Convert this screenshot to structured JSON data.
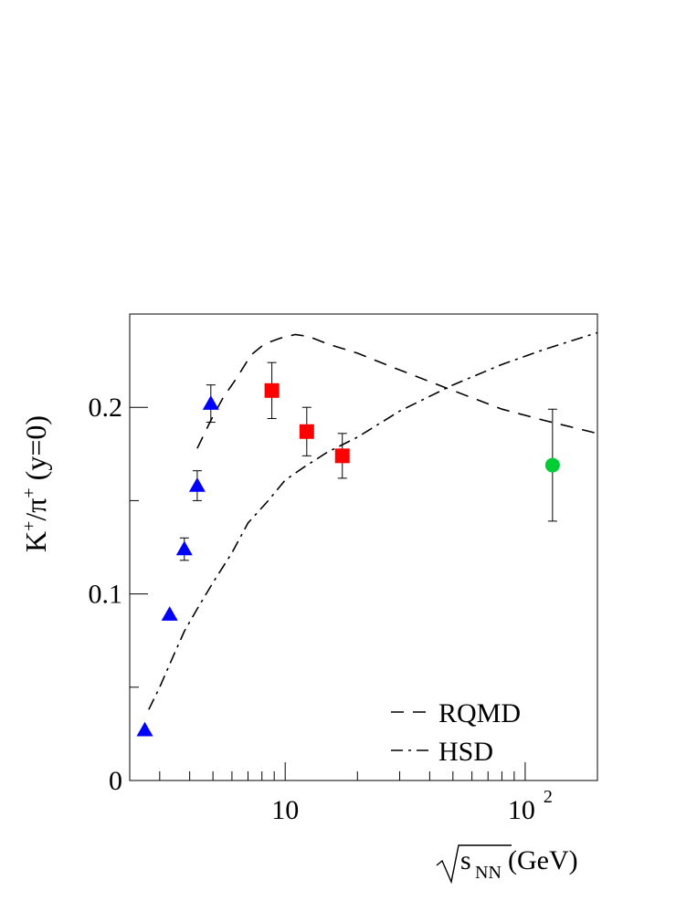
{
  "chart_data": {
    "type": "scatter",
    "xscale": "log",
    "xlim": [
      2.25,
      200
    ],
    "ylim": [
      0,
      0.25
    ],
    "grid": false,
    "legend_position": "bottom-right",
    "xlabel": "s_NN (GeV)",
    "xlabel_parts": {
      "base": "s",
      "subscript": "NN",
      "unit": " (GeV)"
    },
    "ylabel": "K+/π+ (y=0)",
    "ylabel_parts": {
      "k": "K",
      "plus1": "+",
      "slash_pi": "/π",
      "plus2": "+",
      "rest": " (y=0)"
    },
    "y_ticks": [
      {
        "value": 0,
        "label": "0"
      },
      {
        "value": 0.1,
        "label": "0.1"
      },
      {
        "value": 0.2,
        "label": "0.2"
      }
    ],
    "x_ticks": [
      {
        "value": 10,
        "label": "10"
      },
      {
        "value": 100,
        "label": "10",
        "exponent": "2"
      }
    ],
    "markers": [
      {
        "shape": "triangle",
        "color": "#0000ff",
        "points": [
          {
            "x": 2.6,
            "y": 0.027
          },
          {
            "x": 3.3,
            "y": 0.089
          },
          {
            "x": 3.8,
            "y": 0.124,
            "err": 0.006
          },
          {
            "x": 4.3,
            "y": 0.158,
            "err": 0.008
          },
          {
            "x": 4.9,
            "y": 0.202,
            "err": 0.01
          }
        ]
      },
      {
        "shape": "square",
        "color": "#ff0000",
        "points": [
          {
            "x": 8.8,
            "y": 0.209,
            "err": 0.015
          },
          {
            "x": 12.3,
            "y": 0.187,
            "err": 0.013
          },
          {
            "x": 17.3,
            "y": 0.174,
            "err": 0.012
          }
        ]
      },
      {
        "shape": "circle",
        "color": "#00cc33",
        "points": [
          {
            "x": 130,
            "y": 0.169,
            "err": 0.03
          }
        ]
      }
    ],
    "series": [
      {
        "name": "RQMD",
        "style": "dashed",
        "x": [
          4.3,
          4.9,
          5.5,
          6.3,
          7.2,
          8.2,
          9.5,
          11,
          12.5,
          15,
          20,
          30,
          50,
          80,
          120,
          200
        ],
        "y": [
          0.178,
          0.193,
          0.205,
          0.216,
          0.228,
          0.234,
          0.237,
          0.239,
          0.238,
          0.234,
          0.229,
          0.22,
          0.209,
          0.199,
          0.193,
          0.186
        ]
      },
      {
        "name": "HSD",
        "style": "dash-dot",
        "x": [
          2.7,
          3.0,
          3.4,
          3.8,
          4.3,
          5.0,
          6.0,
          7.0,
          8.5,
          10,
          12,
          15,
          20,
          30,
          50,
          80,
          120,
          200
        ],
        "y": [
          0.038,
          0.05,
          0.066,
          0.08,
          0.092,
          0.106,
          0.122,
          0.138,
          0.15,
          0.161,
          0.168,
          0.176,
          0.184,
          0.198,
          0.212,
          0.223,
          0.231,
          0.24
        ]
      }
    ]
  }
}
